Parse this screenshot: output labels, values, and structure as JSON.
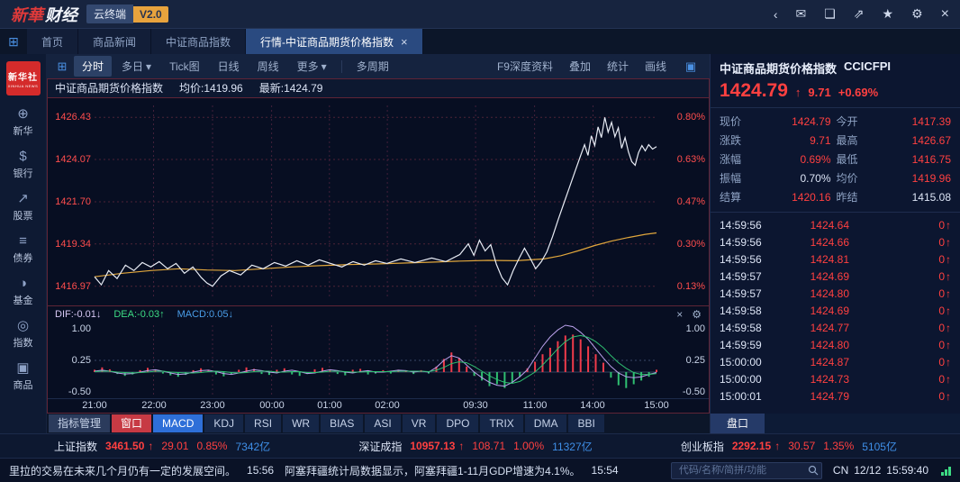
{
  "topbar": {
    "logo_part1": "新華",
    "logo_part2": "财经",
    "terminal_label": "云终端",
    "version_badge": "V2.0",
    "icons": [
      {
        "name": "back",
        "glyph": "‹"
      },
      {
        "name": "mail",
        "glyph": "✉"
      },
      {
        "name": "message",
        "glyph": "❏"
      },
      {
        "name": "share",
        "glyph": "⇗"
      },
      {
        "name": "gift",
        "glyph": "★"
      },
      {
        "name": "settings",
        "glyph": "⚙"
      },
      {
        "name": "close",
        "glyph": "×"
      }
    ]
  },
  "tabs": {
    "icon_glyph": "⊞",
    "close_glyph": "×",
    "items": [
      {
        "label": "首页"
      },
      {
        "label": "商品新闻"
      },
      {
        "label": "中证商品指数"
      },
      {
        "label": "行情-中证商品期货价格指数"
      }
    ]
  },
  "sidebar": {
    "logo_line1": "新华社",
    "logo_line2": "XINHUA NEWS",
    "items": [
      {
        "icon": "⊕",
        "label": "新华"
      },
      {
        "icon": "$",
        "label": "银行"
      },
      {
        "icon": "↗",
        "label": "股票"
      },
      {
        "icon": "≡",
        "label": "债券"
      },
      {
        "icon": "◑",
        "label": "基金"
      },
      {
        "icon": "◎",
        "label": "指数"
      },
      {
        "icon": "▣",
        "label": "商品"
      }
    ]
  },
  "toolbar": {
    "left_icon": "⊞",
    "caret_glyph": "▾",
    "items": [
      {
        "label": "分时"
      },
      {
        "label": "多日"
      },
      {
        "label": "Tick图"
      },
      {
        "label": "日线"
      },
      {
        "label": "周线"
      },
      {
        "label": "更多"
      },
      {
        "label": "多周期"
      }
    ],
    "right_items": [
      "F9深度资料",
      "叠加",
      "统计",
      "画线"
    ],
    "panel_icon": "▣"
  },
  "chart_header": {
    "title": "中证商品期货价格指数",
    "avg": "均价:1419.96",
    "last": "最新:1424.79"
  },
  "chart_data": [
    {
      "type": "line",
      "title": "中证商品期货价格指数 分时",
      "ylim": [
        1416.3,
        1427.1
      ],
      "grid_values": [
        1426.43,
        1424.07,
        1421.7,
        1419.34,
        1416.97
      ],
      "y_labels_left": [
        "1426.43",
        "1424.07",
        "1421.70",
        "1419.34",
        "1416.97"
      ],
      "y_labels_right": [
        "0.80%",
        "0.63%",
        "0.47%",
        "0.30%",
        "0.13%"
      ],
      "x_ticks": [
        "21:00",
        "22:00",
        "23:00",
        "00:00",
        "01:00",
        "02:00",
        "09:30",
        "11:00",
        "14:00",
        "15:00"
      ],
      "x_tick_pos": [
        0,
        0.105,
        0.21,
        0.315,
        0.418,
        0.521,
        0.678,
        0.783,
        0.887,
        1
      ],
      "series": [
        {
          "name": "price",
          "color": "#e8ecf5",
          "points": [
            [
              0,
              1417.5
            ],
            [
              0.012,
              1417.05
            ],
            [
              0.025,
              1417.85
            ],
            [
              0.04,
              1417.4
            ],
            [
              0.055,
              1418.15
            ],
            [
              0.07,
              1417.85
            ],
            [
              0.085,
              1418.3
            ],
            [
              0.1,
              1418.05
            ],
            [
              0.115,
              1418.35
            ],
            [
              0.13,
              1417.95
            ],
            [
              0.145,
              1418.25
            ],
            [
              0.16,
              1417.7
            ],
            [
              0.175,
              1418.05
            ],
            [
              0.19,
              1417.45
            ],
            [
              0.2,
              1417.15
            ],
            [
              0.21,
              1416.97
            ],
            [
              0.225,
              1417.55
            ],
            [
              0.24,
              1417.85
            ],
            [
              0.26,
              1417.6
            ],
            [
              0.28,
              1418.15
            ],
            [
              0.3,
              1417.95
            ],
            [
              0.32,
              1418.3
            ],
            [
              0.34,
              1418.1
            ],
            [
              0.36,
              1418.4
            ],
            [
              0.38,
              1418.15
            ],
            [
              0.4,
              1418.45
            ],
            [
              0.42,
              1418.25
            ],
            [
              0.44,
              1418.05
            ],
            [
              0.46,
              1418.35
            ],
            [
              0.48,
              1418.15
            ],
            [
              0.5,
              1418.4
            ],
            [
              0.52,
              1418.25
            ],
            [
              0.545,
              1418.5
            ],
            [
              0.57,
              1418.3
            ],
            [
              0.6,
              1418.55
            ],
            [
              0.625,
              1418.35
            ],
            [
              0.65,
              1418.75
            ],
            [
              0.665,
              1419.35
            ],
            [
              0.675,
              1418.7
            ],
            [
              0.685,
              1419.55
            ],
            [
              0.695,
              1418.95
            ],
            [
              0.705,
              1419.3
            ],
            [
              0.715,
              1418.2
            ],
            [
              0.725,
              1417.45
            ],
            [
              0.735,
              1417.05
            ],
            [
              0.745,
              1417.85
            ],
            [
              0.755,
              1418.5
            ],
            [
              0.765,
              1419.1
            ],
            [
              0.775,
              1418.55
            ],
            [
              0.785,
              1417.95
            ],
            [
              0.795,
              1418.35
            ],
            [
              0.805,
              1418.9
            ],
            [
              0.815,
              1419.75
            ],
            [
              0.825,
              1420.7
            ],
            [
              0.835,
              1421.6
            ],
            [
              0.845,
              1422.5
            ],
            [
              0.855,
              1423.4
            ],
            [
              0.865,
              1424.3
            ],
            [
              0.872,
              1424.9
            ],
            [
              0.878,
              1424.3
            ],
            [
              0.884,
              1425.4
            ],
            [
              0.89,
              1424.85
            ],
            [
              0.896,
              1425.9
            ],
            [
              0.902,
              1425.3
            ],
            [
              0.908,
              1426.43
            ],
            [
              0.914,
              1425.6
            ],
            [
              0.92,
              1426.15
            ],
            [
              0.926,
              1425.35
            ],
            [
              0.932,
              1425.85
            ],
            [
              0.938,
              1424.7
            ],
            [
              0.944,
              1425.3
            ],
            [
              0.95,
              1424.5
            ],
            [
              0.956,
              1423.95
            ],
            [
              0.962,
              1423.75
            ],
            [
              0.968,
              1424.45
            ],
            [
              0.974,
              1424.85
            ],
            [
              0.98,
              1424.55
            ],
            [
              0.986,
              1424.9
            ],
            [
              0.993,
              1424.65
            ],
            [
              1,
              1424.79
            ]
          ]
        },
        {
          "name": "avg",
          "color": "#e0a63c",
          "points": [
            [
              0,
              1417.5
            ],
            [
              0.05,
              1417.7
            ],
            [
              0.1,
              1417.85
            ],
            [
              0.15,
              1417.95
            ],
            [
              0.2,
              1417.88
            ],
            [
              0.25,
              1417.85
            ],
            [
              0.3,
              1417.95
            ],
            [
              0.35,
              1418.05
            ],
            [
              0.4,
              1418.12
            ],
            [
              0.45,
              1418.18
            ],
            [
              0.5,
              1418.22
            ],
            [
              0.55,
              1418.27
            ],
            [
              0.6,
              1418.32
            ],
            [
              0.65,
              1418.38
            ],
            [
              0.7,
              1418.42
            ],
            [
              0.75,
              1418.4
            ],
            [
              0.8,
              1418.5
            ],
            [
              0.83,
              1418.68
            ],
            [
              0.86,
              1418.95
            ],
            [
              0.89,
              1419.25
            ],
            [
              0.92,
              1419.5
            ],
            [
              0.95,
              1419.7
            ],
            [
              0.98,
              1419.88
            ],
            [
              1,
              1419.96
            ]
          ]
        }
      ]
    },
    {
      "type": "macd",
      "labels": {
        "dif": "DIF:-0.01↓",
        "dea": "DEA:-0.03↑",
        "macd": "MACD:0.05↓"
      },
      "close_icon": "×",
      "gear_icon": "⚙",
      "ylim": [
        -0.5,
        1.0
      ],
      "y_ticks": [
        "1.00",
        "0.25",
        "-0.50"
      ],
      "y_tick_values": [
        1.0,
        0.25,
        -0.5
      ],
      "up_color": "#f03b4a",
      "down_color": "#2fbf71",
      "dif_color": "#b9a0ea",
      "dea_color": "#2fbf71",
      "hist": [
        0.05,
        0.1,
        0.06,
        -0.04,
        -0.08,
        -0.05,
        0.04,
        0.09,
        0.05,
        -0.03,
        -0.07,
        -0.1,
        -0.06,
        0.04,
        0.08,
        0.05,
        -0.05,
        -0.09,
        -0.04,
        0.05,
        0.1,
        0.07,
        -0.04,
        -0.06,
        0.05,
        0.08,
        -0.05,
        -0.08,
        -0.04,
        0.06,
        0.09,
        0.05,
        -0.04,
        -0.07,
        0.05,
        0.07,
        -0.05,
        -0.03,
        0.04,
        -0.03,
        0.05,
        0.03,
        -0.04,
        0.04,
        -0.03,
        0.12,
        0.28,
        0.42,
        0.3,
        0.12,
        -0.08,
        -0.18,
        -0.3,
        -0.26,
        -0.34,
        -0.22,
        -0.1,
        0.08,
        0.22,
        0.38,
        0.52,
        0.66,
        0.78,
        0.8,
        0.7,
        0.55,
        0.38,
        0.2,
        -0.12,
        -0.28,
        -0.34,
        -0.26,
        -0.18,
        -0.1,
        0.05
      ],
      "dif": [
        0.02,
        0.04,
        0.02,
        -0.02,
        -0.04,
        -0.03,
        0,
        0.03,
        0.05,
        0.02,
        -0.02,
        -0.05,
        -0.04,
        0,
        0.03,
        0.04,
        0.01,
        -0.03,
        -0.05,
        -0.02,
        0.02,
        0.05,
        0.03,
        0,
        -0.02,
        0.02,
        0.04,
        0.01,
        -0.03,
        -0.02,
        0.02,
        0.05,
        0.03,
        0,
        -0.02,
        0.01,
        0.03,
        0,
        0,
        0.02,
        0.04,
        0.03,
        0,
        0.02,
        0,
        0.1,
        0.25,
        0.35,
        0.3,
        0.15,
        0,
        -0.12,
        -0.22,
        -0.28,
        -0.3,
        -0.22,
        -0.1,
        0.05,
        0.3,
        0.55,
        0.75,
        0.9,
        1,
        0.97,
        0.85,
        0.7,
        0.5,
        0.3,
        0.12,
        -0.02,
        -0.1,
        -0.12,
        -0.1,
        -0.05,
        -0.01
      ],
      "dea": [
        0.01,
        0.02,
        0.02,
        0,
        -0.01,
        -0.02,
        -0.01,
        0,
        0.02,
        0.02,
        0,
        -0.01,
        -0.02,
        -0.02,
        -0.01,
        0.01,
        0.02,
        0.01,
        -0.01,
        -0.02,
        -0.01,
        0.01,
        0.02,
        0.02,
        0,
        0,
        0.01,
        0.01,
        -0.01,
        -0.01,
        0,
        0.02,
        0.02,
        0.01,
        0,
        0,
        0.01,
        0.01,
        0.01,
        0.01,
        0.02,
        0.02,
        0.02,
        0.02,
        0.01,
        0.04,
        0.1,
        0.18,
        0.22,
        0.2,
        0.12,
        0.02,
        -0.08,
        -0.16,
        -0.22,
        -0.24,
        -0.2,
        -0.1,
        0,
        0.15,
        0.32,
        0.5,
        0.65,
        0.75,
        0.78,
        0.74,
        0.65,
        0.52,
        0.35,
        0.2,
        0.08,
        -0.01,
        -0.05,
        -0.05,
        -0.03
      ]
    }
  ],
  "indicator_bar": {
    "manage_label": "指标管理",
    "window_label": "窗口",
    "items": [
      "MACD",
      "KDJ",
      "RSI",
      "WR",
      "BIAS",
      "ASI",
      "VR",
      "DPO",
      "TRIX",
      "DMA",
      "BBI"
    ],
    "active": "MACD"
  },
  "quote": {
    "title": "中证商品期货价格指数",
    "code": "CCICFPI",
    "price": "1424.79",
    "arrow_up": "↑",
    "change": "9.71",
    "change_pct": "+0.69%",
    "pankou_label": "盘口",
    "fields": [
      {
        "label": "现价",
        "value": "1424.79"
      },
      {
        "label": "今开",
        "value": "1417.39"
      },
      {
        "label": "涨跌",
        "value": "9.71"
      },
      {
        "label": "最高",
        "value": "1426.67"
      },
      {
        "label": "涨幅",
        "value": "0.69%"
      },
      {
        "label": "最低",
        "value": "1416.75"
      },
      {
        "label": "振幅",
        "value": "0.70%"
      },
      {
        "label": "均价",
        "value": "1419.96"
      },
      {
        "label": "结算",
        "value": "1420.16"
      },
      {
        "label": "昨结",
        "value": "1415.08"
      }
    ],
    "ticks": [
      {
        "time": "14:59:56",
        "price": "1424.64",
        "vol": "0"
      },
      {
        "time": "14:59:56",
        "price": "1424.66",
        "vol": "0"
      },
      {
        "time": "14:59:56",
        "price": "1424.81",
        "vol": "0"
      },
      {
        "time": "14:59:57",
        "price": "1424.69",
        "vol": "0"
      },
      {
        "time": "14:59:57",
        "price": "1424.80",
        "vol": "0"
      },
      {
        "time": "14:59:58",
        "price": "1424.69",
        "vol": "0"
      },
      {
        "time": "14:59:58",
        "price": "1424.77",
        "vol": "0"
      },
      {
        "time": "14:59:59",
        "price": "1424.80",
        "vol": "0"
      },
      {
        "time": "15:00:00",
        "price": "1424.87",
        "vol": "0"
      },
      {
        "time": "15:00:00",
        "price": "1424.73",
        "vol": "0"
      },
      {
        "time": "15:00:01",
        "price": "1424.79",
        "vol": "0"
      }
    ]
  },
  "index_ticker": {
    "arrow_up": "↑",
    "groups": [
      {
        "name": "上证指数",
        "value": "3461.50",
        "change": "29.01",
        "pct": "0.85%",
        "amount": "7342亿"
      },
      {
        "name": "深证成指",
        "value": "10957.13",
        "change": "108.71",
        "pct": "1.00%",
        "amount": "11327亿"
      },
      {
        "name": "创业板指",
        "value": "2292.15",
        "change": "30.57",
        "pct": "1.35%",
        "amount": "5105亿"
      }
    ]
  },
  "status_bar": {
    "news1": "里拉的交易在未来几个月仍有一定的发展空间。",
    "time1": "15:56",
    "news2": "阿塞拜疆统计局数据显示，阿塞拜疆1-11月GDP增速为4.1%。",
    "time2": "15:54",
    "search_placeholder": "代码/名称/简拼/功能",
    "locale": "CN",
    "date": "12/12",
    "clock": "15:59:40"
  }
}
